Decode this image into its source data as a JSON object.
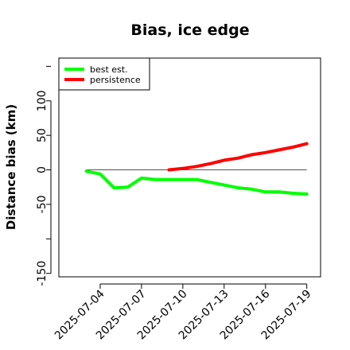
{
  "chart_data": {
    "type": "line",
    "title": "Bias, ice edge",
    "xlabel": "",
    "ylabel": "Distance bias (km)",
    "xlim": [
      "2025-07-01",
      "2025-07-20"
    ],
    "ylim": [
      -155,
      162
    ],
    "x_ticks": [
      "2025-07-04",
      "2025-07-07",
      "2025-07-10",
      "2025-07-13",
      "2025-07-16",
      "2025-07-19"
    ],
    "y_ticks": [
      -150,
      -50,
      0,
      50,
      100
    ],
    "grid": false,
    "reference_line": 0,
    "legend_position": "top-left",
    "series": [
      {
        "name": "best est.",
        "color": "#00ff00",
        "x": [
          "2025-07-03",
          "2025-07-04",
          "2025-07-05",
          "2025-07-06",
          "2025-07-07",
          "2025-07-08",
          "2025-07-09",
          "2025-07-10",
          "2025-07-11",
          "2025-07-12",
          "2025-07-13",
          "2025-07-14",
          "2025-07-15",
          "2025-07-16",
          "2025-07-17",
          "2025-07-18",
          "2025-07-19"
        ],
        "y": [
          -2,
          -6,
          -26,
          -25,
          -12,
          -14,
          -14,
          -14,
          -14,
          -18,
          -22,
          -26,
          -28,
          -32,
          -32,
          -34,
          -35
        ]
      },
      {
        "name": "persistence",
        "color": "#ff0000",
        "x": [
          "2025-07-09",
          "2025-07-10",
          "2025-07-11",
          "2025-07-12",
          "2025-07-13",
          "2025-07-14",
          "2025-07-15",
          "2025-07-16",
          "2025-07-17",
          "2025-07-18",
          "2025-07-19"
        ],
        "y": [
          0,
          2,
          5,
          9,
          14,
          17,
          22,
          25,
          29,
          33,
          38
        ]
      }
    ]
  }
}
